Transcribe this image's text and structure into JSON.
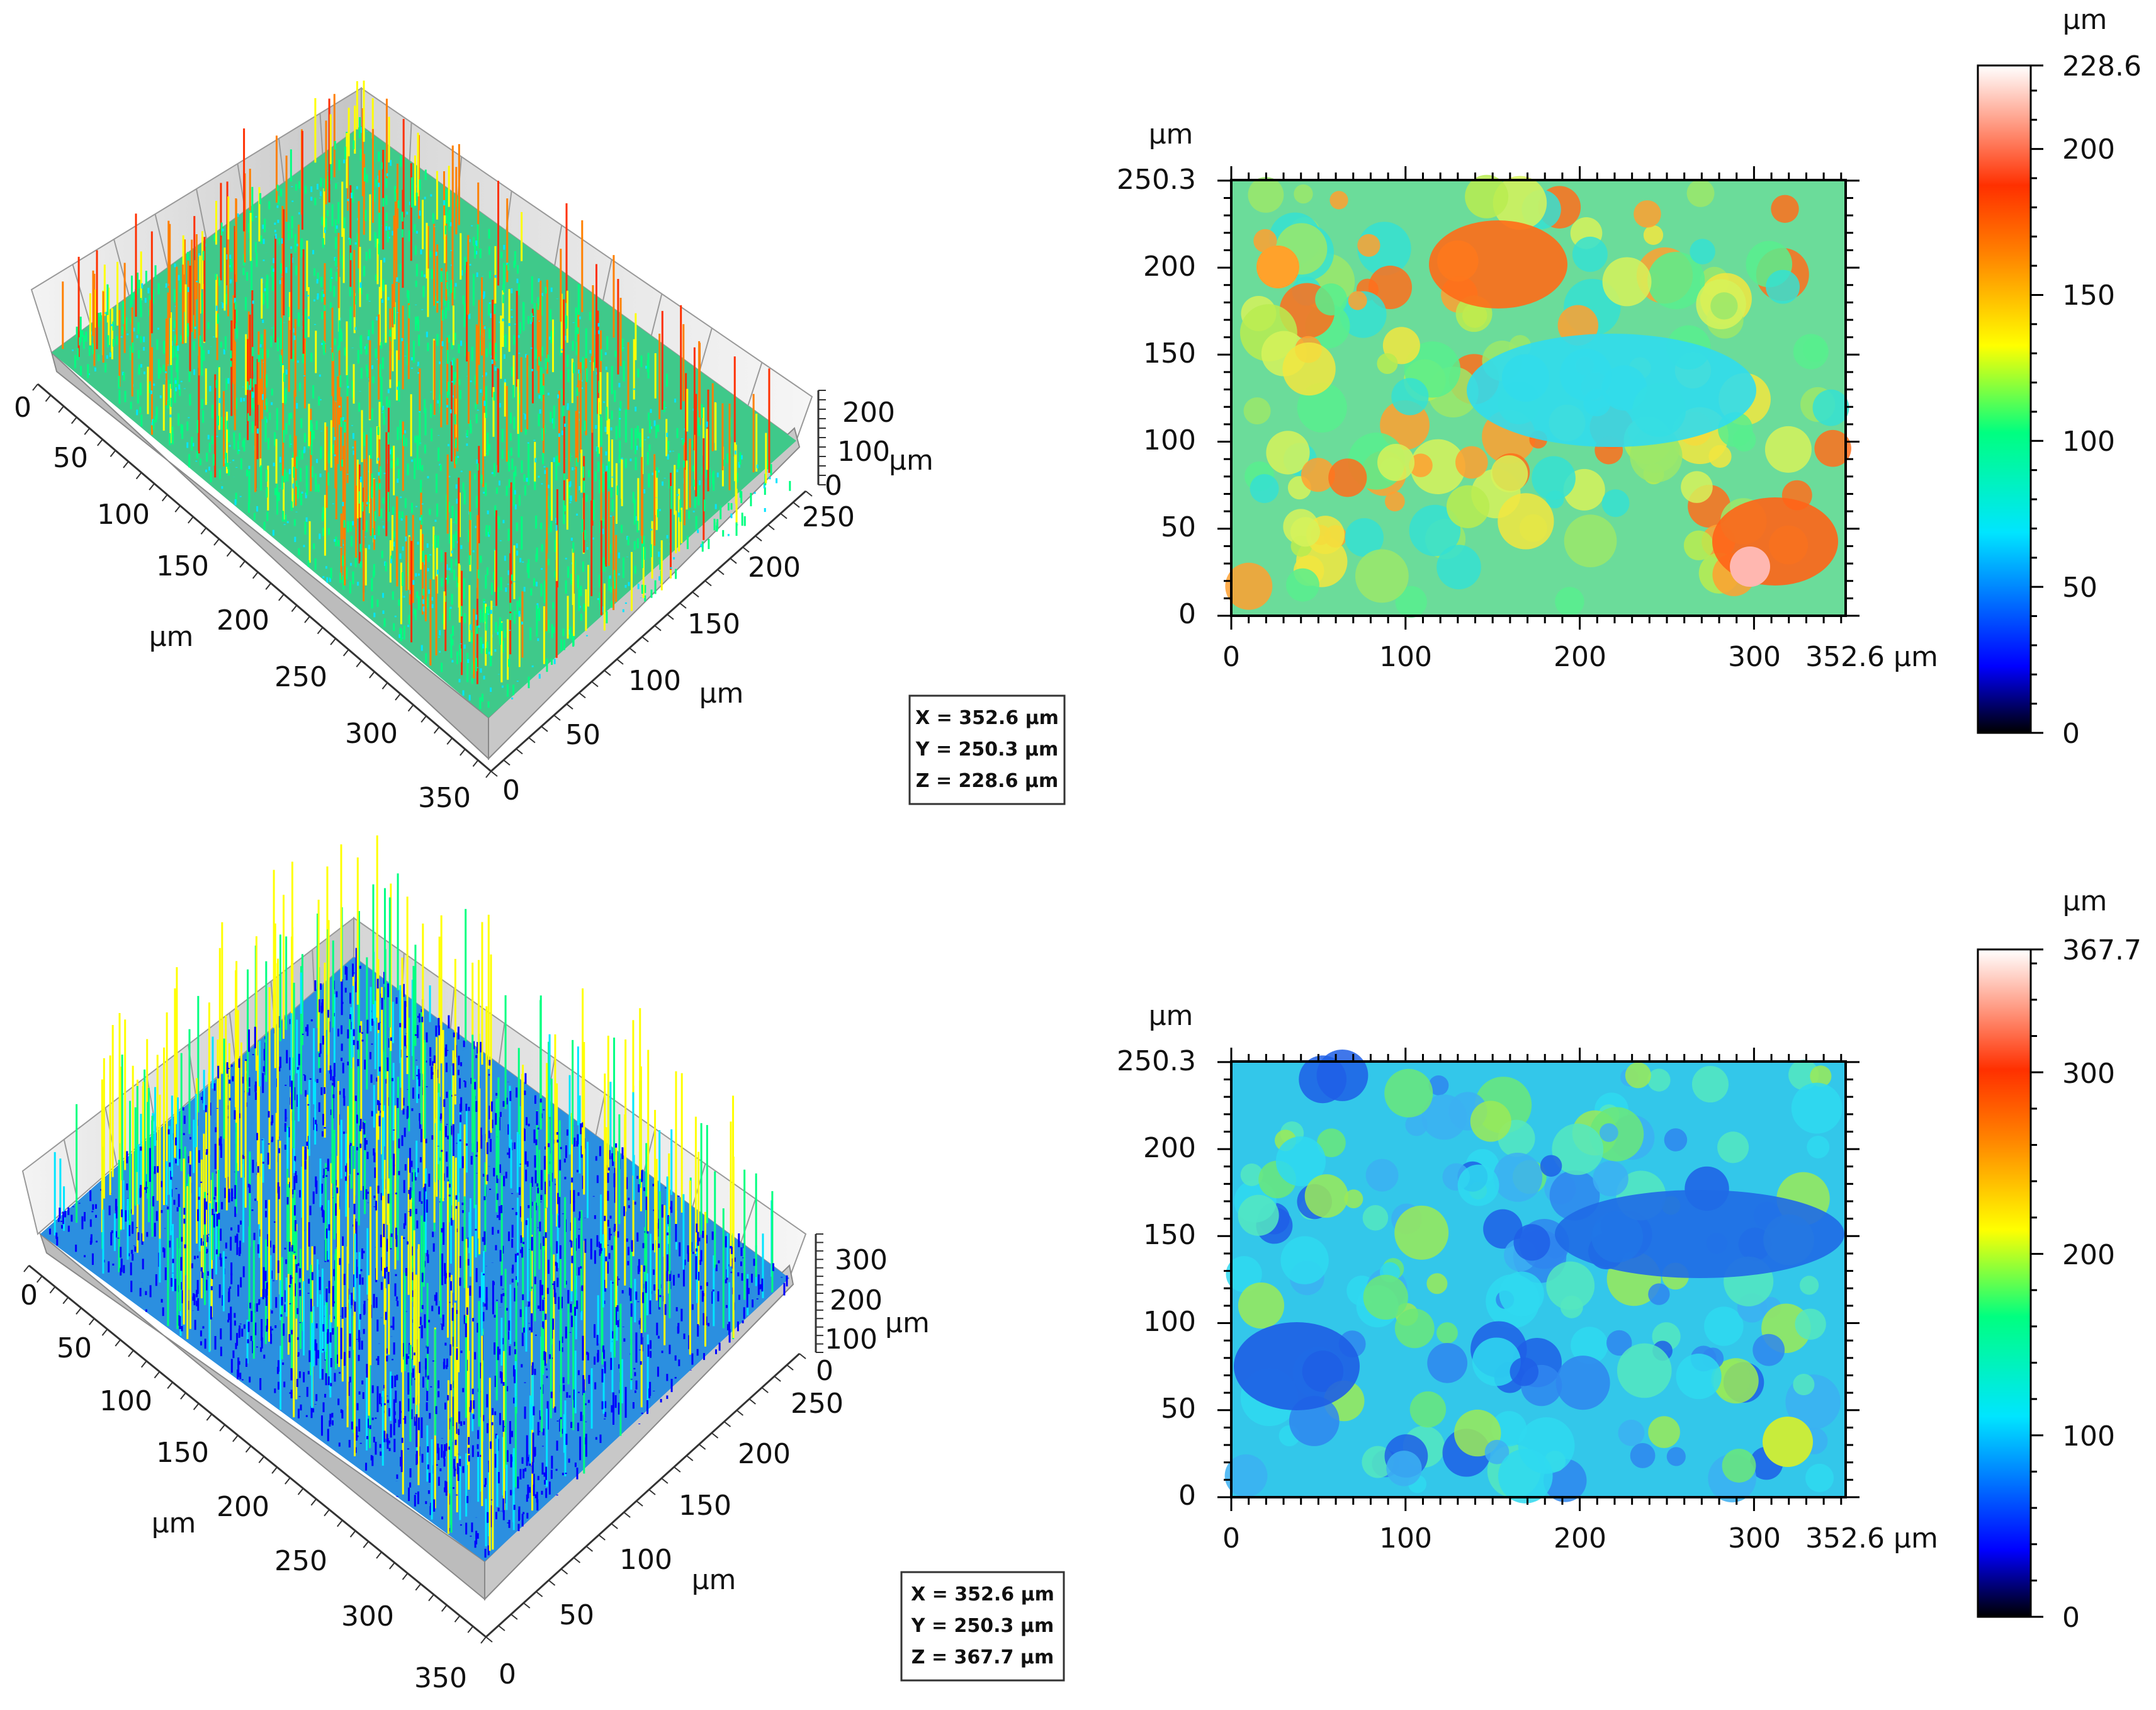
{
  "chart_data": [
    {
      "type": "surface3d",
      "x_ticks": [
        "0",
        "50",
        "100",
        "150",
        "200",
        "250",
        "300",
        "350"
      ],
      "y_ticks": [
        "0",
        "50",
        "100",
        "150",
        "200",
        "250"
      ],
      "z_ticks": [
        "0",
        "100",
        "200"
      ],
      "x_unit": "µm",
      "y_unit": "µm",
      "z_unit": "µm",
      "info": [
        "X = 352.6 µm",
        "Y = 250.3 µm",
        "Z = 228.6 µm"
      ],
      "ranges": {
        "x": [
          0,
          352.6
        ],
        "y": [
          0,
          250.3
        ],
        "z": [
          0,
          228.6
        ]
      },
      "colormap": [
        "#000000",
        "#0000ff",
        "#00e5ff",
        "#00ff80",
        "#ffff00",
        "#ff8000",
        "#ff3000",
        "#ffffff"
      ]
    },
    {
      "type": "heatmap",
      "x_ticks": [
        "0",
        "100",
        "200",
        "300",
        "352.6 µm"
      ],
      "y_ticks": [
        "0",
        "50",
        "100",
        "150",
        "200",
        "250.3"
      ],
      "y_unit": "µm",
      "colorbar": {
        "unit": "µm",
        "ticks": [
          "0",
          "50",
          "100",
          "150",
          "200",
          "228.6"
        ],
        "min": 0,
        "max": 228.6
      },
      "ranges": {
        "x": [
          0,
          352.6
        ],
        "y": [
          0,
          250.3
        ]
      }
    },
    {
      "type": "surface3d",
      "x_ticks": [
        "0",
        "50",
        "100",
        "150",
        "200",
        "250",
        "300",
        "350"
      ],
      "y_ticks": [
        "0",
        "50",
        "100",
        "150",
        "200",
        "250"
      ],
      "z_ticks": [
        "0",
        "100",
        "200",
        "300"
      ],
      "x_unit": "µm",
      "y_unit": "µm",
      "z_unit": "µm",
      "info": [
        "X = 352.6 µm",
        "Y = 250.3 µm",
        "Z = 367.7 µm"
      ],
      "ranges": {
        "x": [
          0,
          352.6
        ],
        "y": [
          0,
          250.3
        ],
        "z": [
          0,
          367.7
        ]
      },
      "colormap": [
        "#000000",
        "#0000ff",
        "#00e5ff",
        "#00ff80",
        "#ffff00",
        "#ff8000",
        "#ff3000",
        "#ffffff"
      ]
    },
    {
      "type": "heatmap",
      "x_ticks": [
        "0",
        "100",
        "200",
        "300",
        "352.6 µm"
      ],
      "y_ticks": [
        "0",
        "50",
        "100",
        "150",
        "200",
        "250.3"
      ],
      "y_unit": "µm",
      "colorbar": {
        "unit": "µm",
        "ticks": [
          "0",
          "100",
          "200",
          "300",
          "367.7"
        ],
        "min": 0,
        "max": 367.7
      },
      "ranges": {
        "x": [
          0,
          352.6
        ],
        "y": [
          0,
          250.3
        ]
      }
    }
  ]
}
